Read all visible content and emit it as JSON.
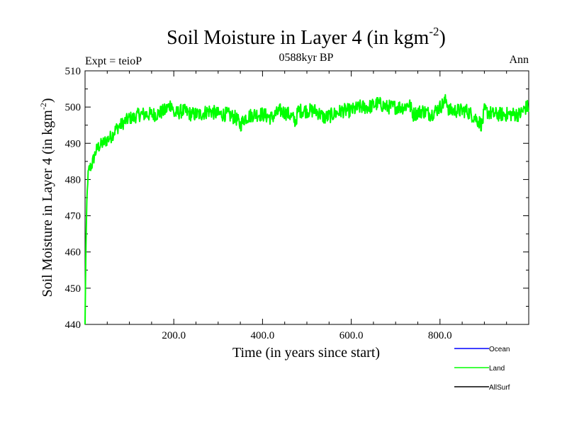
{
  "header": {
    "title_main": "Soil Moisture in Layer 4 (in kgm",
    "title_sup": "-2",
    "title_close": ")",
    "left_label": "Expt = teioP",
    "center_label": "0588kyr BP",
    "right_label": "Ann"
  },
  "chart_data": {
    "type": "line",
    "title": "Soil Moisture in Layer 4 (in kgm-2)",
    "xlabel": "Time (in years since start)",
    "ylabel": "Soil Moisture in Layer 4 (in kgm-2)",
    "xlim": [
      0,
      1000
    ],
    "ylim": [
      440,
      510
    ],
    "x_ticks": [
      200,
      400,
      600,
      800
    ],
    "x_tick_labels": [
      "200.0",
      "400.0",
      "600.0",
      "800.0"
    ],
    "y_ticks": [
      440,
      450,
      460,
      470,
      480,
      490,
      500,
      510
    ],
    "y_tick_labels": [
      "440",
      "450",
      "460",
      "470",
      "480",
      "490",
      "500",
      "510"
    ],
    "series": [
      {
        "name": "Ocean",
        "color": "#0000ff",
        "x": [],
        "values": []
      },
      {
        "name": "Land",
        "color": "#00ff00",
        "x": [
          0,
          2,
          4,
          6,
          8,
          10,
          15,
          20,
          25,
          30,
          40,
          50,
          60,
          70,
          80,
          90,
          100,
          110,
          120,
          140,
          160,
          180,
          195,
          200,
          220,
          240,
          260,
          280,
          300,
          320,
          340,
          350,
          360,
          380,
          400,
          420,
          440,
          460,
          475,
          480,
          500,
          520,
          540,
          560,
          580,
          600,
          620,
          640,
          660,
          680,
          700,
          720,
          730,
          740,
          760,
          780,
          800,
          815,
          820,
          840,
          860,
          880,
          895,
          900,
          920,
          940,
          960,
          980,
          995,
          1000
        ],
        "values": [
          440,
          462,
          474,
          480,
          482,
          483,
          484,
          486,
          488,
          489,
          490,
          491,
          492,
          494,
          495,
          496,
          497,
          497,
          498,
          498,
          498,
          499,
          501,
          498,
          499,
          498,
          498,
          499,
          498,
          498,
          497,
          495,
          497,
          498,
          498,
          497,
          499,
          498,
          496,
          499,
          499,
          499,
          497,
          498,
          499,
          499,
          500,
          500,
          501,
          500,
          500,
          500,
          501,
          498,
          499,
          498,
          500,
          502,
          499,
          499,
          499,
          497,
          495,
          499,
          498,
          498,
          498,
          498,
          500,
          500
        ]
      },
      {
        "name": "AllSurf",
        "color": "#000000",
        "x": [],
        "values": []
      }
    ],
    "legend": {
      "placement": "bottom-right",
      "entries": [
        {
          "label": "Ocean",
          "color": "#0000ff"
        },
        {
          "label": "Land",
          "color": "#00ff00"
        },
        {
          "label": "AllSurf",
          "color": "#000000"
        }
      ]
    }
  }
}
